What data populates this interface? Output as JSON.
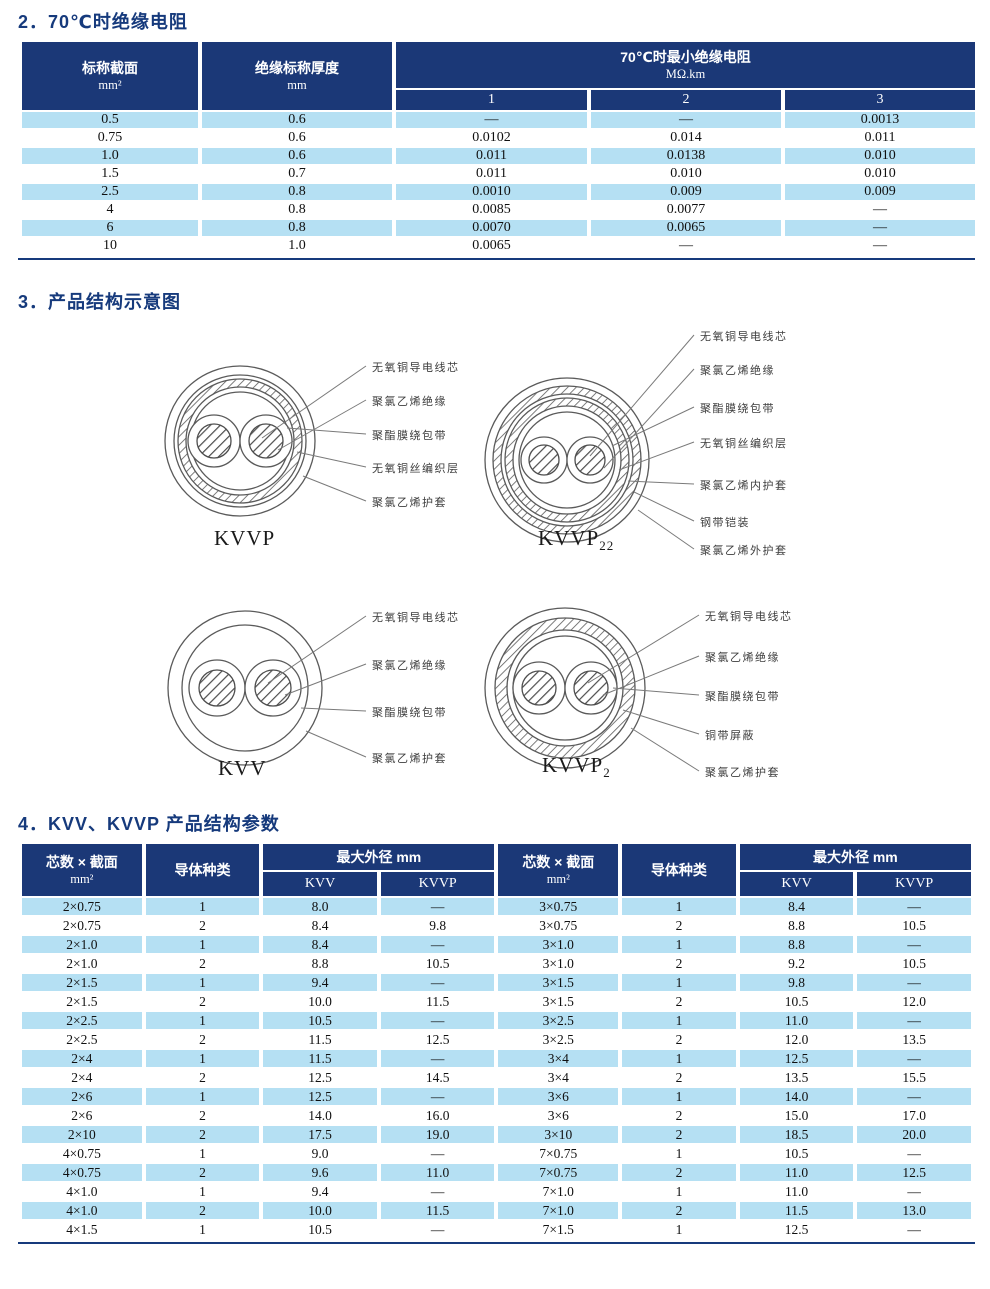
{
  "sections": {
    "s2_title": "2．70℃时绝缘电阻",
    "s3_title": "3．产品结构示意图",
    "s4_title": "4．KVV、KVVP 产品结构参数"
  },
  "colors": {
    "header_navy": "#1b3877",
    "row_light_blue": "#b5e0f3",
    "title_navy": "#163a7c"
  },
  "table1": {
    "col1_header": "标称截面",
    "col1_unit": "mm²",
    "col2_header": "绝缘标称厚度",
    "col2_unit": "mm",
    "group_header": "70℃时最小绝缘电阻",
    "group_unit": "MΩ.km",
    "subcols": [
      "1",
      "2",
      "3"
    ],
    "rows": [
      [
        "0.5",
        "0.6",
        "—",
        "—",
        "0.0013"
      ],
      [
        "0.75",
        "0.6",
        "0.0102",
        "0.014",
        "0.011"
      ],
      [
        "1.0",
        "0.6",
        "0.011",
        "0.0138",
        "0.010"
      ],
      [
        "1.5",
        "0.7",
        "0.011",
        "0.010",
        "0.010"
      ],
      [
        "2.5",
        "0.8",
        "0.0010",
        "0.009",
        "0.009"
      ],
      [
        "4",
        "0.8",
        "0.0085",
        "0.0077",
        "—"
      ],
      [
        "6",
        "0.8",
        "0.0070",
        "0.0065",
        "—"
      ],
      [
        "10",
        "1.0",
        "0.0065",
        "—",
        "—"
      ]
    ]
  },
  "diagrams": [
    {
      "id": "kvvp",
      "caption_base": "KVVP",
      "caption_sub": "",
      "labels": [
        "无氧铜导电线芯",
        "聚氯乙烯绝缘",
        "聚酯膜绕包带",
        "无氧铜丝编织层",
        "聚氯乙烯护套"
      ]
    },
    {
      "id": "kvvp22",
      "caption_base": "KVVP",
      "caption_sub": "22",
      "labels": [
        "无氧铜导电线芯",
        "聚氯乙烯绝缘",
        "聚酯膜绕包带",
        "无氧铜丝编织层",
        "聚氯乙烯内护套",
        "钢带铠装",
        "聚氯乙烯外护套"
      ]
    },
    {
      "id": "kvv",
      "caption_base": "KVV",
      "caption_sub": "",
      "labels": [
        "无氧铜导电线芯",
        "聚氯乙烯绝缘",
        "聚酯膜绕包带",
        "聚氯乙烯护套"
      ]
    },
    {
      "id": "kvvp2",
      "caption_base": "KVVP",
      "caption_sub": "2",
      "labels": [
        "无氧铜导电线芯",
        "聚氯乙烯绝缘",
        "聚酯膜绕包带",
        "铜带屏蔽",
        "聚氯乙烯护套"
      ]
    }
  ],
  "table4": {
    "col_core_header": "芯数 × 截面",
    "col_core_unit": "mm²",
    "col_conductor_header": "导体种类",
    "group_header": "最大外径 mm",
    "subcols": [
      "KVV",
      "KVVP"
    ],
    "left_rows": [
      [
        "2×0.75",
        "1",
        "8.0",
        "—"
      ],
      [
        "2×0.75",
        "2",
        "8.4",
        "9.8"
      ],
      [
        "2×1.0",
        "1",
        "8.4",
        "—"
      ],
      [
        "2×1.0",
        "2",
        "8.8",
        "10.5"
      ],
      [
        "2×1.5",
        "1",
        "9.4",
        "—"
      ],
      [
        "2×1.5",
        "2",
        "10.0",
        "11.5"
      ],
      [
        "2×2.5",
        "1",
        "10.5",
        "—"
      ],
      [
        "2×2.5",
        "2",
        "11.5",
        "12.5"
      ],
      [
        "2×4",
        "1",
        "11.5",
        "—"
      ],
      [
        "2×4",
        "2",
        "12.5",
        "14.5"
      ],
      [
        "2×6",
        "1",
        "12.5",
        "—"
      ],
      [
        "2×6",
        "2",
        "14.0",
        "16.0"
      ],
      [
        "2×10",
        "2",
        "17.5",
        "19.0"
      ],
      [
        "4×0.75",
        "1",
        "9.0",
        "—"
      ],
      [
        "4×0.75",
        "2",
        "9.6",
        "11.0"
      ],
      [
        "4×1.0",
        "1",
        "9.4",
        "—"
      ],
      [
        "4×1.0",
        "2",
        "10.0",
        "11.5"
      ],
      [
        "4×1.5",
        "1",
        "10.5",
        "—"
      ]
    ],
    "right_rows": [
      [
        "3×0.75",
        "1",
        "8.4",
        "—"
      ],
      [
        "3×0.75",
        "2",
        "8.8",
        "10.5"
      ],
      [
        "3×1.0",
        "1",
        "8.8",
        "—"
      ],
      [
        "3×1.0",
        "2",
        "9.2",
        "10.5"
      ],
      [
        "3×1.5",
        "1",
        "9.8",
        "—"
      ],
      [
        "3×1.5",
        "2",
        "10.5",
        "12.0"
      ],
      [
        "3×2.5",
        "1",
        "11.0",
        "—"
      ],
      [
        "3×2.5",
        "2",
        "12.0",
        "13.5"
      ],
      [
        "3×4",
        "1",
        "12.5",
        "—"
      ],
      [
        "3×4",
        "2",
        "13.5",
        "15.5"
      ],
      [
        "3×6",
        "1",
        "14.0",
        "—"
      ],
      [
        "3×6",
        "2",
        "15.0",
        "17.0"
      ],
      [
        "3×10",
        "2",
        "18.5",
        "20.0"
      ],
      [
        "7×0.75",
        "1",
        "10.5",
        "—"
      ],
      [
        "7×0.75",
        "2",
        "11.0",
        "12.5"
      ],
      [
        "7×1.0",
        "1",
        "11.0",
        "—"
      ],
      [
        "7×1.0",
        "2",
        "11.5",
        "13.0"
      ],
      [
        "7×1.5",
        "1",
        "12.5",
        "—"
      ]
    ]
  }
}
